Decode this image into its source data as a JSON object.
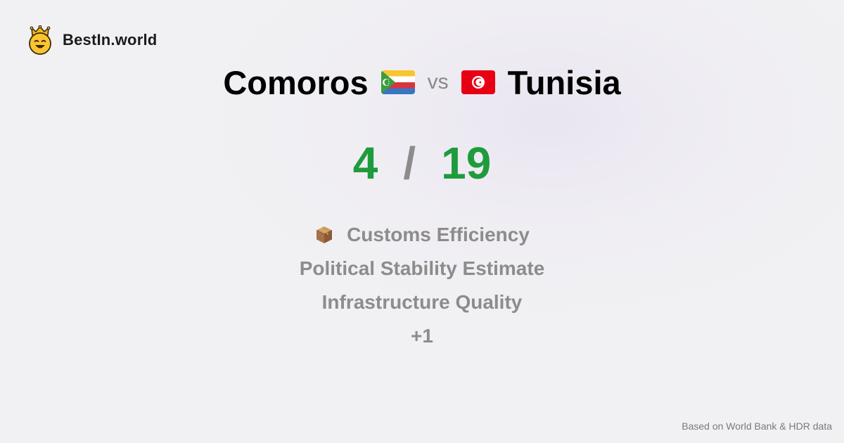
{
  "brand": {
    "name": "BestIn.world",
    "icon": "crown-smiley-icon"
  },
  "comparison": {
    "left_country": "Comoros",
    "left_flag": "comoros-flag-icon",
    "vs_label": "vs",
    "right_country": "Tunisia",
    "right_flag": "tunisia-flag-icon"
  },
  "score": {
    "left": "4",
    "separator": "/",
    "right": "19",
    "color": "#1e9b3c"
  },
  "categories": [
    {
      "label": "Customs Efficiency",
      "icon": "package-icon"
    },
    {
      "label": "Political Stability Estimate"
    },
    {
      "label": "Infrastructure Quality"
    },
    {
      "label": "+1"
    }
  ],
  "footer": {
    "source": "Based on World Bank & HDR data"
  }
}
